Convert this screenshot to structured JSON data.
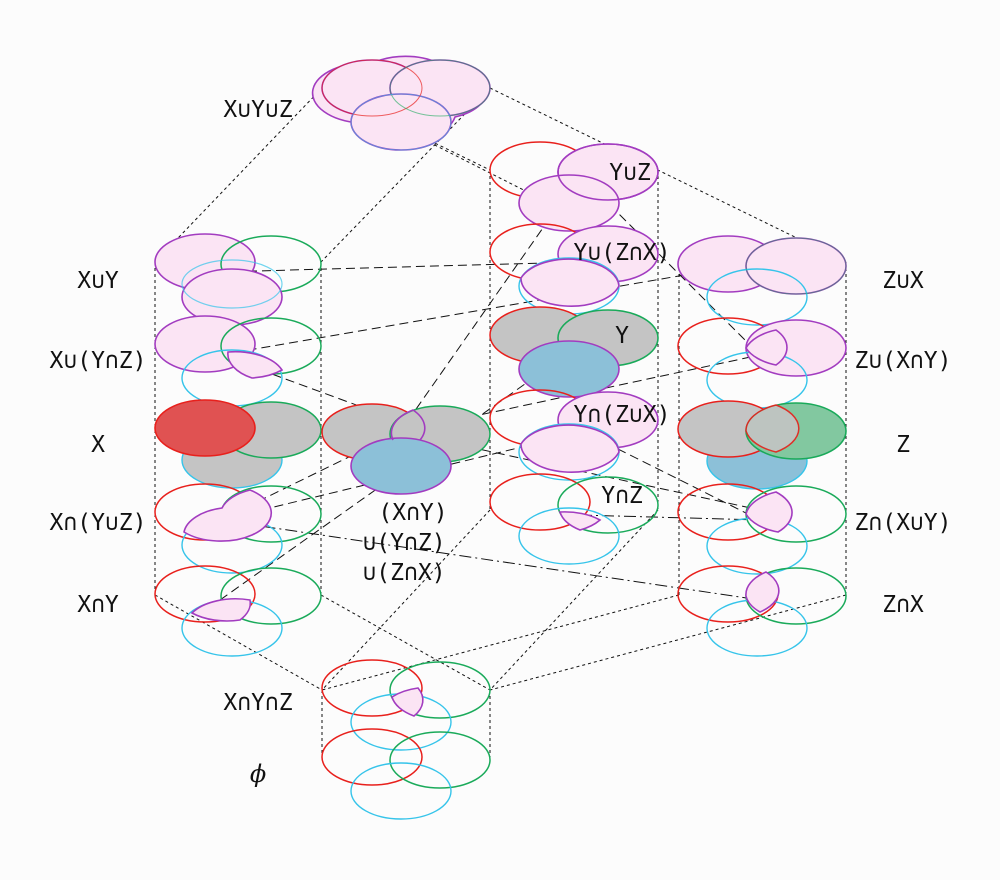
{
  "colors": {
    "x": "#e8201c",
    "y": "#1aaa5a",
    "z": "#36c4ea",
    "union_outline": "#a23cc0",
    "union_fill": "#fbe4f4",
    "x_fill": "#e05252",
    "y_fill": "#82c8a0",
    "z_fill": "#8cc0d8",
    "shade": "#c4c4c4",
    "edge": "#111111"
  },
  "labels": {
    "xuyuz": "X∪Y∪Z",
    "yuz": "Y∪Z",
    "yu_zx": "Y∪(Z∩X)",
    "y": "Y",
    "yn_zux": "Y∩(Z∪X)",
    "ynz": "Y∩Z",
    "xuy": "X∪Y",
    "xu_ynz": "X∪(Y∩Z)",
    "x": "X",
    "xn_yuz": "X∩(Y∪Z)",
    "xny": "X∩Y",
    "zux": "Z∪X",
    "zu_xny": "Z∪(X∩Y)",
    "z": "Z",
    "zn_xuy": "Z∩(X∪Y)",
    "znx": "Z∩X",
    "median_1": "(X∩Y)",
    "median_2": "∪(Y∩Z)",
    "median_3": "∪(Z∩X)",
    "xnynz": "X∩Y∩Z",
    "empty": "ϕ"
  }
}
